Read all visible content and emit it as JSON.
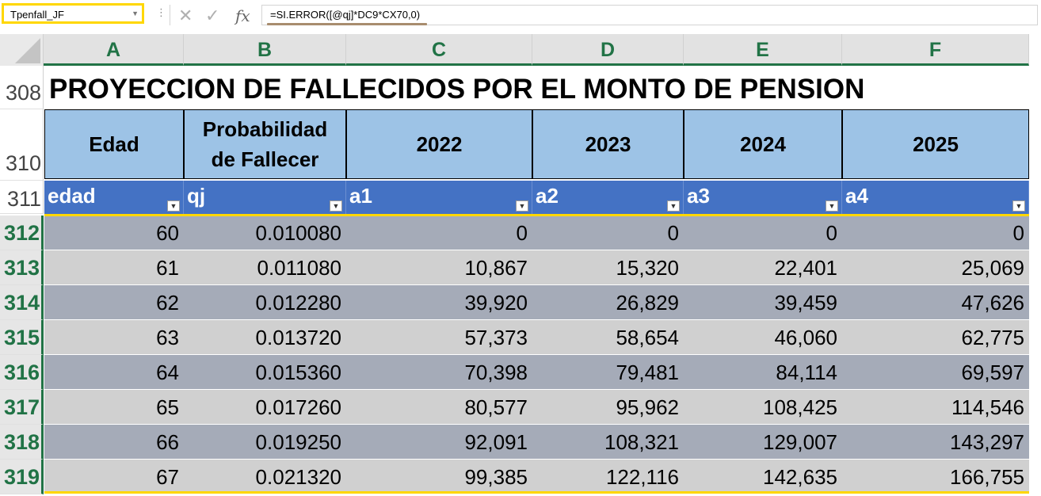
{
  "formula_bar": {
    "name_box": "Tpenfall_JF",
    "formula": "=SI.ERROR([@qj]*DC9*CX70,0)",
    "cancel_icon": "x-icon",
    "enter_icon": "check-icon",
    "fx_label": "fx"
  },
  "columns": [
    "A",
    "B",
    "C",
    "D",
    "E",
    "F"
  ],
  "rows": {
    "title_row": "308",
    "header_row": "310",
    "table_header_row": "311"
  },
  "title": "PROYECCION DE FALLECIDOS POR EL MONTO DE PENSION",
  "header": {
    "edad": "Edad",
    "prob_line1": "Probabilidad",
    "prob_line2": "de Fallecer",
    "y1": "2022",
    "y2": "2023",
    "y3": "2024",
    "y4": "2025"
  },
  "table_header": [
    "edad",
    "qj",
    "a1",
    "a2",
    "a3",
    "a4"
  ],
  "data": [
    {
      "row": "312",
      "edad": "60",
      "qj": "0.010080",
      "a1": "0",
      "a2": "0",
      "a3": "0",
      "a4": "0"
    },
    {
      "row": "313",
      "edad": "61",
      "qj": "0.011080",
      "a1": "10,867",
      "a2": "15,320",
      "a3": "22,401",
      "a4": "25,069"
    },
    {
      "row": "314",
      "edad": "62",
      "qj": "0.012280",
      "a1": "39,920",
      "a2": "26,829",
      "a3": "39,459",
      "a4": "47,626"
    },
    {
      "row": "315",
      "edad": "63",
      "qj": "0.013720",
      "a1": "57,373",
      "a2": "58,654",
      "a3": "46,060",
      "a4": "62,775"
    },
    {
      "row": "316",
      "edad": "64",
      "qj": "0.015360",
      "a1": "70,398",
      "a2": "79,481",
      "a3": "84,114",
      "a4": "69,597"
    },
    {
      "row": "317",
      "edad": "65",
      "qj": "0.017260",
      "a1": "80,577",
      "a2": "95,962",
      "a3": "108,425",
      "a4": "114,546"
    },
    {
      "row": "318",
      "edad": "66",
      "qj": "0.019250",
      "a1": "92,091",
      "a2": "108,321",
      "a3": "129,007",
      "a4": "143,297"
    },
    {
      "row": "319",
      "edad": "67",
      "qj": "0.021320",
      "a1": "99,385",
      "a2": "122,116",
      "a3": "142,635",
      "a4": "166,755"
    }
  ],
  "colors": {
    "excel_green": "#217346",
    "selection_yellow": "#ffd700",
    "header_light_blue": "#9dc3e6",
    "table_header_blue": "#4472c4",
    "band_dark": "#a5abb8",
    "band_light": "#d0d0d0"
  }
}
